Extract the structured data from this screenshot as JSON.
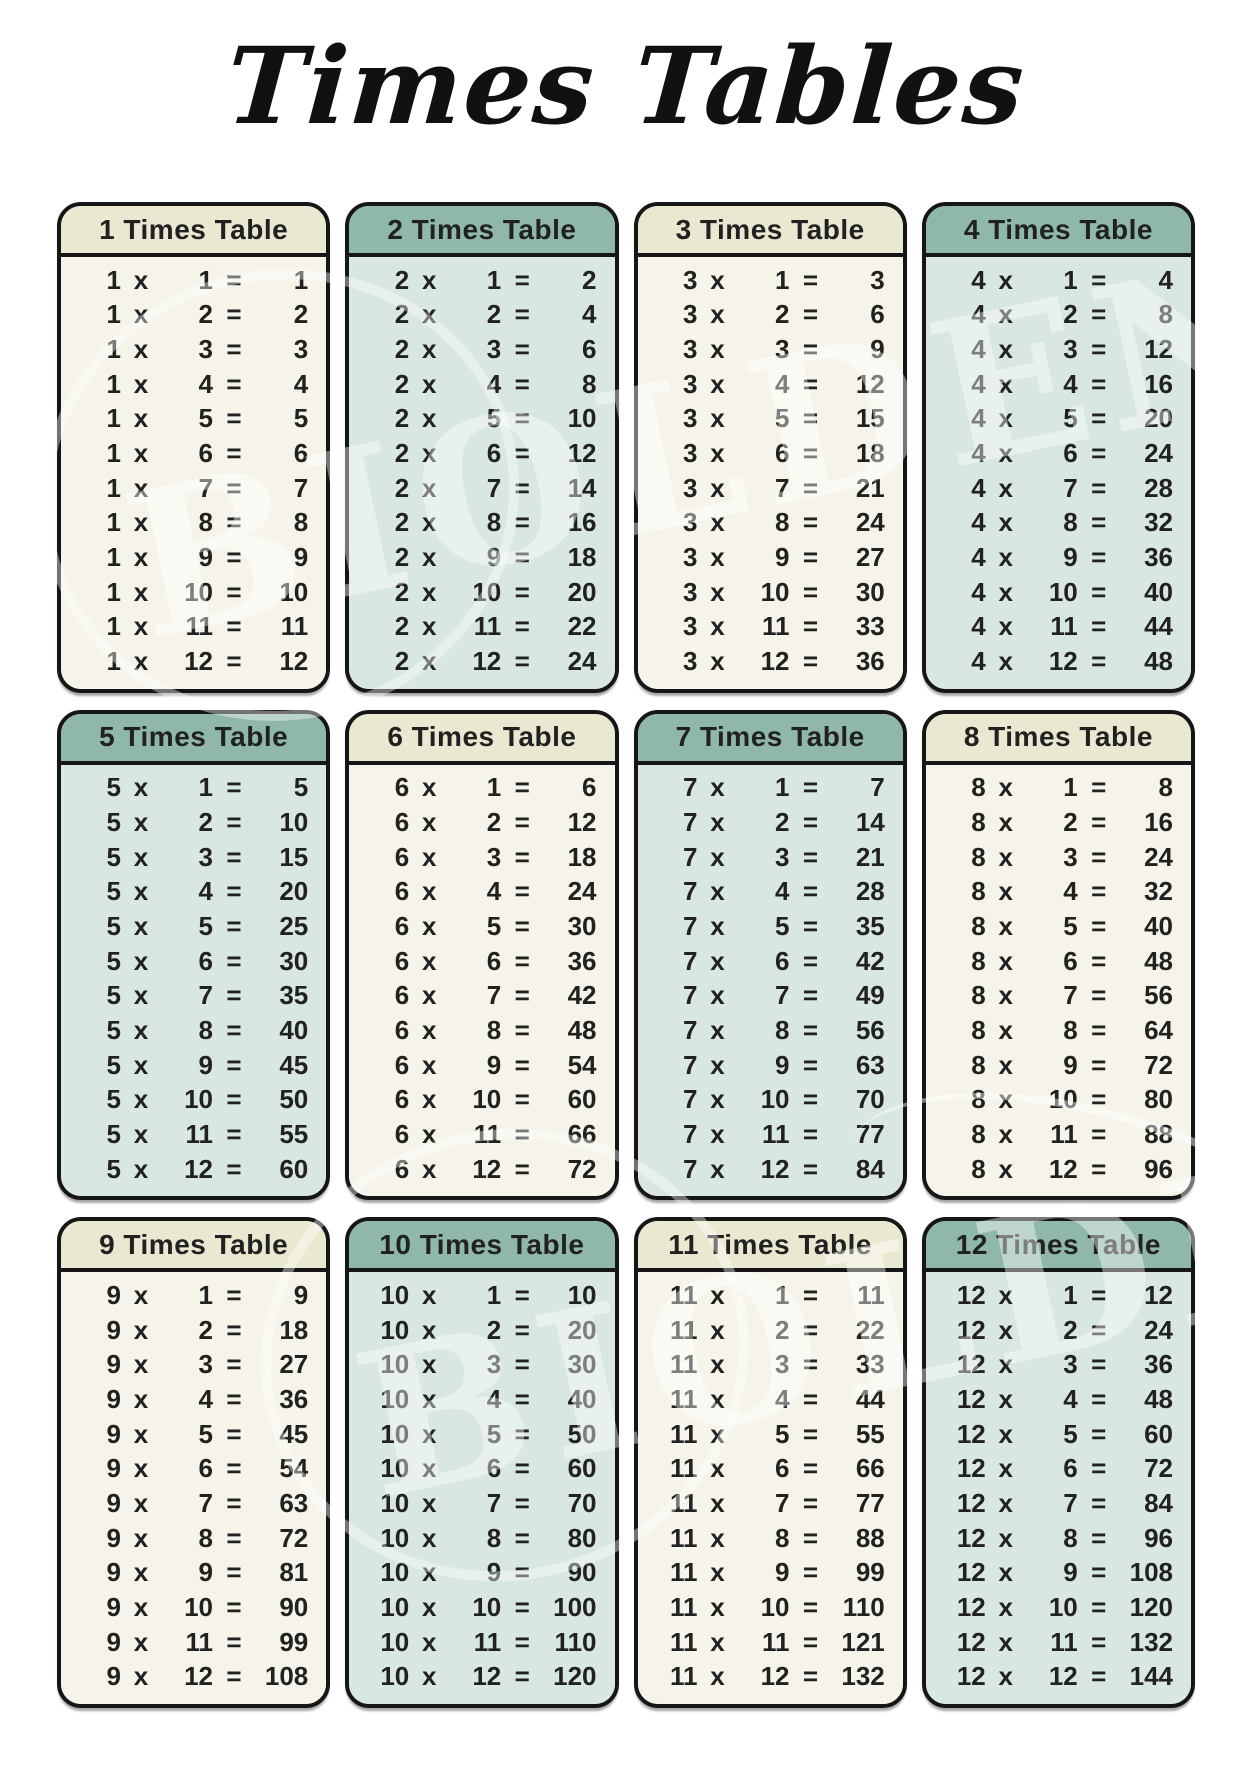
{
  "page": {
    "title": "Times Tables"
  },
  "colors": {
    "page_bg": "#ffffff",
    "cream_header": "#ebe8d1",
    "cream_body": "#f6f4ea",
    "teal_header": "#8fb8a9",
    "teal_body": "#d9e7e1",
    "card_border": "#161616",
    "text": "#212121",
    "title": "#111111"
  },
  "operators": {
    "multiply": "x",
    "equals": "="
  },
  "watermark": {
    "text": "BIOLDEN"
  },
  "tables": [
    {
      "title": "1 Times Table",
      "factor": 1,
      "theme": "cream",
      "multipliers": [
        1,
        2,
        3,
        4,
        5,
        6,
        7,
        8,
        9,
        10,
        11,
        12
      ],
      "products": [
        1,
        2,
        3,
        4,
        5,
        6,
        7,
        8,
        9,
        10,
        11,
        12
      ]
    },
    {
      "title": "2 Times Table",
      "factor": 2,
      "theme": "teal",
      "multipliers": [
        1,
        2,
        3,
        4,
        5,
        6,
        7,
        8,
        9,
        10,
        11,
        12
      ],
      "products": [
        2,
        4,
        6,
        8,
        10,
        12,
        14,
        16,
        18,
        20,
        22,
        24
      ]
    },
    {
      "title": "3 Times Table",
      "factor": 3,
      "theme": "cream",
      "multipliers": [
        1,
        2,
        3,
        4,
        5,
        6,
        7,
        8,
        9,
        10,
        11,
        12
      ],
      "products": [
        3,
        6,
        9,
        12,
        15,
        18,
        21,
        24,
        27,
        30,
        33,
        36
      ]
    },
    {
      "title": "4 Times Table",
      "factor": 4,
      "theme": "teal",
      "multipliers": [
        1,
        2,
        3,
        4,
        5,
        6,
        7,
        8,
        9,
        10,
        11,
        12
      ],
      "products": [
        4,
        8,
        12,
        16,
        20,
        24,
        28,
        32,
        36,
        40,
        44,
        48
      ]
    },
    {
      "title": "5 Times Table",
      "factor": 5,
      "theme": "teal",
      "multipliers": [
        1,
        2,
        3,
        4,
        5,
        6,
        7,
        8,
        9,
        10,
        11,
        12
      ],
      "products": [
        5,
        10,
        15,
        20,
        25,
        30,
        35,
        40,
        45,
        50,
        55,
        60
      ]
    },
    {
      "title": "6 Times Table",
      "factor": 6,
      "theme": "cream",
      "multipliers": [
        1,
        2,
        3,
        4,
        5,
        6,
        7,
        8,
        9,
        10,
        11,
        12
      ],
      "products": [
        6,
        12,
        18,
        24,
        30,
        36,
        42,
        48,
        54,
        60,
        66,
        72
      ]
    },
    {
      "title": "7 Times Table",
      "factor": 7,
      "theme": "teal",
      "multipliers": [
        1,
        2,
        3,
        4,
        5,
        6,
        7,
        8,
        9,
        10,
        11,
        12
      ],
      "products": [
        7,
        14,
        21,
        28,
        35,
        42,
        49,
        56,
        63,
        70,
        77,
        84
      ]
    },
    {
      "title": "8 Times Table",
      "factor": 8,
      "theme": "cream",
      "multipliers": [
        1,
        2,
        3,
        4,
        5,
        6,
        7,
        8,
        9,
        10,
        11,
        12
      ],
      "products": [
        8,
        16,
        24,
        32,
        40,
        48,
        56,
        64,
        72,
        80,
        88,
        96
      ]
    },
    {
      "title": "9 Times Table",
      "factor": 9,
      "theme": "cream",
      "multipliers": [
        1,
        2,
        3,
        4,
        5,
        6,
        7,
        8,
        9,
        10,
        11,
        12
      ],
      "products": [
        9,
        18,
        27,
        36,
        45,
        54,
        63,
        72,
        81,
        90,
        99,
        108
      ]
    },
    {
      "title": "10 Times Table",
      "factor": 10,
      "theme": "teal",
      "multipliers": [
        1,
        2,
        3,
        4,
        5,
        6,
        7,
        8,
        9,
        10,
        11,
        12
      ],
      "products": [
        10,
        20,
        30,
        40,
        50,
        60,
        70,
        80,
        90,
        100,
        110,
        120
      ]
    },
    {
      "title": "11 Times Table",
      "factor": 11,
      "theme": "cream",
      "multipliers": [
        1,
        2,
        3,
        4,
        5,
        6,
        7,
        8,
        9,
        10,
        11,
        12
      ],
      "products": [
        11,
        22,
        33,
        44,
        55,
        66,
        77,
        88,
        99,
        110,
        121,
        132
      ]
    },
    {
      "title": "12 Times Table",
      "factor": 12,
      "theme": "teal",
      "multipliers": [
        1,
        2,
        3,
        4,
        5,
        6,
        7,
        8,
        9,
        10,
        11,
        12
      ],
      "products": [
        12,
        24,
        36,
        48,
        60,
        72,
        84,
        96,
        108,
        120,
        132,
        144
      ]
    }
  ]
}
